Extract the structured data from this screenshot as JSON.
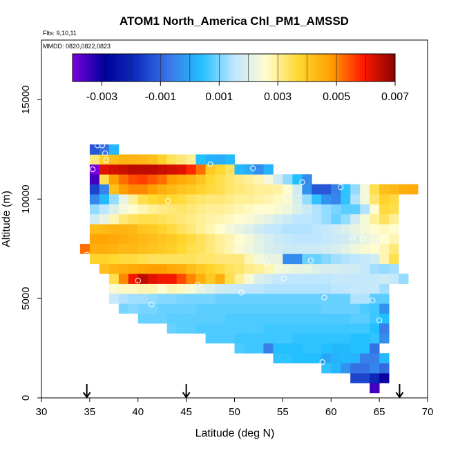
{
  "chart_data": {
    "type": "heatmap",
    "title": "ATOM1 North_America Chl_PM1_AMSSD",
    "flights_label": "Flts: 9,10,11",
    "mmdd_label": "MMDD: 0820,0822,0823",
    "xlabel": "Latitude (deg N)",
    "ylabel": "Altitude (m)",
    "xlim": [
      30,
      70
    ],
    "ylim": [
      0,
      18000
    ],
    "x_ticks": [
      "30",
      "35",
      "40",
      "45",
      "50",
      "55",
      "60",
      "65",
      "70"
    ],
    "y_ticks": [
      "0",
      "5000",
      "10000",
      "15000"
    ],
    "colorbar": {
      "range": [
        -0.004,
        0.007
      ],
      "ticks": [
        "-0.003",
        "-0.001",
        "0.001",
        "0.003",
        "0.005",
        "0.007"
      ],
      "colors": [
        "#7a00e0",
        "#00009a",
        "#1030c0",
        "#3a78e8",
        "#22c0ff",
        "#bfe6ff",
        "#fffcd0",
        "#ffd830",
        "#ffa000",
        "#ff1a00",
        "#8a0000"
      ]
    },
    "cell_size": {
      "lat_deg": 1.0,
      "alt_m": 500
    },
    "rows": [
      {
        "alt": 500,
        "lat0": 64.5,
        "values": [
          -0.0035
        ]
      },
      {
        "alt": 1000,
        "lat0": 62.5,
        "values": [
          -0.0015,
          -0.0015,
          -0.002,
          -0.003
        ]
      },
      {
        "alt": 1500,
        "lat0": 59.5,
        "values": [
          0.0005,
          0.0003,
          -0.0003,
          -0.0008,
          -0.0008,
          -0.0005,
          -0.0009
        ]
      },
      {
        "alt": 2000,
        "lat0": 54.5,
        "values": [
          0.0005,
          0.0005,
          0.0004,
          0.0004,
          0.0004,
          0.0,
          0.0002,
          0.0003,
          0.0002,
          -0.0006,
          -0.0006,
          0.0003
        ]
      },
      {
        "alt": 2500,
        "lat0": 50.5,
        "values": [
          0.0007,
          0.0006,
          0.0006,
          -0.0006,
          0.0004,
          0.0004,
          0.0004,
          0.0005,
          0.0005,
          0.0004,
          0.0003,
          0.0003,
          0.0004,
          0.0004,
          -0.0008
        ]
      },
      {
        "alt": 3000,
        "lat0": 47.5,
        "values": [
          0.0007,
          0.0007,
          0.0007,
          0.0006,
          0.0006,
          0.0006,
          0.0006,
          0.0006,
          0.0006,
          0.0005,
          0.0005,
          0.0005,
          0.0005,
          0.0005,
          0.0005,
          0.0004,
          0.0004,
          0.0005,
          -0.0004
        ]
      },
      {
        "alt": 3500,
        "lat0": 43.5,
        "values": [
          0.0009,
          0.0008,
          0.0008,
          0.0007,
          0.0007,
          0.0007,
          0.0007,
          0.0007,
          0.0007,
          0.0007,
          0.0006,
          0.0006,
          0.0006,
          0.0006,
          0.0006,
          0.0006,
          0.0006,
          0.0006,
          0.0006,
          0.0006,
          0.0006,
          0.0004,
          -0.0006
        ]
      },
      {
        "alt": 4000,
        "lat0": 40.5,
        "values": [
          0.0009,
          0.0009,
          0.0009,
          0.0008,
          0.0008,
          0.0008,
          0.0008,
          0.0008,
          0.0008,
          0.0007,
          0.0007,
          0.0007,
          0.0007,
          0.0007,
          0.0007,
          0.0007,
          0.0007,
          0.0007,
          0.0007,
          0.0007,
          0.0007,
          0.0007,
          0.0008,
          0.0008,
          0.0006,
          0.0004
        ]
      },
      {
        "alt": 4500,
        "lat0": 38.5,
        "values": [
          0.001,
          0.0011,
          0.001,
          0.001,
          0.0009,
          0.0009,
          0.0009,
          0.0009,
          0.0008,
          0.0008,
          0.0008,
          0.0008,
          0.0008,
          0.0008,
          0.0008,
          0.0008,
          0.0008,
          0.0008,
          0.0008,
          0.0008,
          0.0008,
          0.0009,
          0.0009,
          0.0009,
          0.0009,
          0.0007,
          0.0006,
          -0.0003
        ]
      },
      {
        "alt": 5000,
        "lat0": 37.5,
        "values": [
          0.0016,
          0.0014,
          0.0013,
          0.0013,
          0.0012,
          0.0011,
          0.0011,
          0.001,
          0.001,
          0.001,
          0.001,
          0.0009,
          0.0009,
          0.0009,
          0.0009,
          0.0009,
          0.0009,
          0.0009,
          0.0009,
          0.0009,
          0.0009,
          0.0009,
          0.0009,
          0.0009,
          0.0009,
          0.0014,
          0.0014,
          0.0008,
          0.0008
        ]
      },
      {
        "alt": 5500,
        "lat0": 37.5,
        "values": [
          0.0025,
          0.0027,
          0.0027,
          0.0028,
          0.0028,
          0.0026,
          0.0028,
          0.0027,
          0.0025,
          0.0022,
          0.002,
          0.0018,
          0.0017,
          0.0016,
          0.0015,
          0.0015,
          0.0014,
          0.0014,
          0.0014,
          0.0014,
          0.0014,
          0.0014,
          0.0014,
          0.0015,
          0.0015,
          0.0016,
          0.0016,
          0.0016,
          0.0013
        ]
      },
      {
        "alt": 6000,
        "lat0": 37.5,
        "values": [
          0.0035,
          0.005,
          0.006,
          0.0065,
          0.0062,
          0.006,
          0.006,
          0.0055,
          0.005,
          0.0045,
          0.004,
          0.0045,
          0.0035,
          0.003,
          0.0025,
          0.002,
          0.0018,
          0.0016,
          0.0015,
          0.0015,
          0.0015,
          0.0015,
          0.0015,
          0.0016,
          0.0016,
          0.0016,
          0.0016,
          0.0016,
          0.0017,
          0.0016,
          0.0012
        ]
      },
      {
        "alt": 6500,
        "lat0": 36.5,
        "values": [
          0.0042,
          0.0044,
          0.0045,
          0.0046,
          0.0047,
          0.0048,
          0.0048,
          0.0046,
          0.0045,
          0.0042,
          0.004,
          0.0038,
          0.0036,
          0.0034,
          0.0033,
          0.0031,
          0.003,
          0.0028,
          0.0024,
          0.0023,
          0.0022,
          0.0022,
          0.002,
          0.0019,
          0.0019,
          0.0018,
          0.0018,
          0.0016,
          0.0013,
          0.0012,
          0.0013
        ]
      },
      {
        "alt": 7000,
        "lat0": 35.5,
        "values": [
          0.0038,
          0.0038,
          0.0037,
          0.0036,
          0.0036,
          0.0035,
          0.0034,
          0.0034,
          0.0034,
          0.0034,
          0.0034,
          0.0033,
          0.0033,
          0.0032,
          0.0032,
          0.0032,
          0.0028,
          0.0024,
          0.0022,
          0.0022,
          -0.0004,
          -0.0004,
          0.0009,
          0.0009,
          0.0011,
          0.0013,
          0.0014,
          0.0015,
          0.0016,
          0.0018,
          0.0028,
          0.0035
        ]
      },
      {
        "alt": 7500,
        "lat0": 34.5,
        "values": [
          0.0052,
          0.0045,
          0.0045,
          0.0044,
          0.0043,
          0.0043,
          0.0042,
          0.0041,
          0.004,
          0.0039,
          0.0037,
          0.0035,
          0.0034,
          0.0032,
          0.003,
          0.0028,
          0.0025,
          0.0023,
          0.0021,
          0.0019,
          0.0018,
          0.0017,
          0.0017,
          0.0017,
          0.0017,
          0.0018,
          0.0019,
          0.0021,
          0.0023,
          0.0025,
          0.0026,
          0.0028,
          0.0032
        ]
      },
      {
        "alt": 8000,
        "lat0": 35.5,
        "values": [
          0.0047,
          0.0047,
          0.0046,
          0.0045,
          0.0044,
          0.0043,
          0.0042,
          0.0041,
          0.004,
          0.0038,
          0.0036,
          0.0034,
          0.0032,
          0.003,
          0.0028,
          0.0026,
          0.0024,
          0.0021,
          0.0019,
          0.0017,
          0.0016,
          0.0015,
          0.0015,
          0.0015,
          0.0016,
          0.0017,
          0.0018,
          0.002,
          0.0022,
          0.0024,
          0.0026,
          0.0028
        ]
      },
      {
        "alt": 8500,
        "lat0": 35.5,
        "values": [
          0.0042,
          0.0043,
          0.0044,
          0.0044,
          0.0043,
          0.0041,
          0.004,
          0.0038,
          0.0036,
          0.0034,
          0.0032,
          0.003,
          0.0028,
          0.0026,
          0.0024,
          0.0022,
          0.002,
          0.0018,
          0.0016,
          0.0015,
          0.0014,
          0.0014,
          0.0014,
          0.0015,
          0.0016,
          0.0018,
          0.002,
          0.0022,
          0.0024,
          0.0026,
          0.0027,
          0.0026
        ]
      },
      {
        "alt": 9000,
        "lat0": 35.5,
        "values": [
          0.0018,
          0.0022,
          0.0028,
          0.0032,
          0.0034,
          0.0035,
          0.0035,
          0.0034,
          0.0033,
          0.0032,
          0.0031,
          0.003,
          0.0029,
          0.0028,
          0.0027,
          0.0026,
          0.0025,
          0.0023,
          0.0021,
          0.0019,
          0.0017,
          0.0015,
          0.0015,
          0.0014,
          0.0012,
          0.0009,
          0.0012,
          0.0018,
          0.0024,
          0.003,
          0.0034,
          0.003
        ]
      },
      {
        "alt": 9500,
        "lat0": 35.5,
        "values": [
          0.0012,
          0.0015,
          0.002,
          0.0024,
          0.0026,
          0.0028,
          0.003,
          0.0031,
          0.0032,
          0.0033,
          0.0032,
          0.0031,
          0.003,
          0.003,
          0.0029,
          0.0028,
          0.0027,
          0.0026,
          0.0026,
          0.0025,
          0.0023,
          0.002,
          0.0017,
          0.0014,
          0.0012,
          0.001,
          0.0008,
          0.0008,
          0.0014,
          0.0026,
          0.0036,
          0.0035
        ]
      },
      {
        "alt": 10000,
        "lat0": 35.5,
        "values": [
          -0.0005,
          0.0003,
          0.0012,
          0.0022,
          0.003,
          0.0035,
          0.0037,
          0.0038,
          0.0037,
          0.0036,
          0.0034,
          0.0033,
          0.0032,
          0.0032,
          0.0031,
          0.003,
          0.003,
          0.0029,
          0.0028,
          0.0027,
          0.0025,
          0.0019,
          0.0012,
          0.0005,
          -0.0003,
          -0.0005,
          0.0005,
          0.0014,
          0.0024,
          0.0033,
          0.0038,
          0.0036
        ]
      },
      {
        "alt": 10500,
        "lat0": 35.5,
        "values": [
          -0.0015,
          -0.0005,
          0.0042,
          0.0048,
          0.005,
          0.005,
          0.0048,
          0.0045,
          0.0043,
          0.0041,
          0.004,
          0.0038,
          0.0036,
          0.0035,
          0.0033,
          0.0032,
          0.0031,
          0.003,
          0.003,
          0.0029,
          0.0026,
          0.0018,
          -0.0003,
          -0.0012,
          -0.0012,
          -0.0006,
          0.0005,
          0.0012,
          0.0024,
          0.0035,
          0.0042,
          0.0043,
          0.0045,
          0.0046
        ]
      },
      {
        "alt": 11000,
        "lat0": 35.5,
        "values": [
          -0.0035,
          0.0035,
          0.0048,
          0.0052,
          0.0055,
          0.0056,
          0.0054,
          0.0052,
          0.0048,
          0.0046,
          0.0044,
          0.0041,
          0.0037,
          0.0035,
          0.0033,
          0.0031,
          0.003,
          0.0028,
          0.0024,
          0.0018,
          0.0012,
          0.0004,
          -0.0004
        ]
      },
      {
        "alt": 11500,
        "lat0": 35.5,
        "values": [
          -0.004,
          0.0062,
          0.0063,
          0.0064,
          0.0065,
          0.0065,
          0.0065,
          0.0064,
          0.0063,
          0.0062,
          0.0058,
          0.0052,
          0.004,
          0.0037,
          0.0034,
          0.0003,
          0.0001,
          -0.0004,
          0.0002
        ]
      },
      {
        "alt": 12000,
        "lat0": 35.5,
        "values": [
          0.0032,
          0.0038,
          0.0042,
          0.0044,
          0.0044,
          0.0043,
          0.0042,
          0.0038,
          0.0034,
          0.0032,
          0.003,
          0.0004,
          0.0002,
          0.0001,
          0.0003
        ]
      },
      {
        "alt": 12500,
        "lat0": 35.5,
        "values": [
          -0.0012,
          -0.0008,
          0.0003
        ]
      }
    ],
    "flight_markers": [
      [
        34.7,
        7200
      ],
      [
        35.3,
        11500
      ],
      [
        35.8,
        12700
      ],
      [
        36.3,
        12700
      ],
      [
        36.6,
        12300
      ],
      [
        36.7,
        11950
      ],
      [
        36.5,
        6100
      ],
      [
        38.8,
        9600
      ],
      [
        40.0,
        5900
      ],
      [
        41.4,
        4700
      ],
      [
        43.1,
        9900
      ],
      [
        46.2,
        5700
      ],
      [
        47.5,
        11750
      ],
      [
        50.7,
        5300
      ],
      [
        51.9,
        11550
      ],
      [
        53.3,
        6800
      ],
      [
        55.1,
        6000
      ],
      [
        57.0,
        10850
      ],
      [
        57.9,
        6900
      ],
      [
        59.1,
        1800
      ],
      [
        59.3,
        5050
      ],
      [
        61.0,
        10600
      ],
      [
        62.2,
        8050
      ],
      [
        63.3,
        8000
      ],
      [
        64.3,
        4900
      ],
      [
        64.9,
        7850
      ],
      [
        65.0,
        3900
      ],
      [
        65.5,
        600
      ],
      [
        69.9,
        10850
      ]
    ],
    "arrows_lat": [
      34.7,
      45.0,
      67.1
    ]
  }
}
